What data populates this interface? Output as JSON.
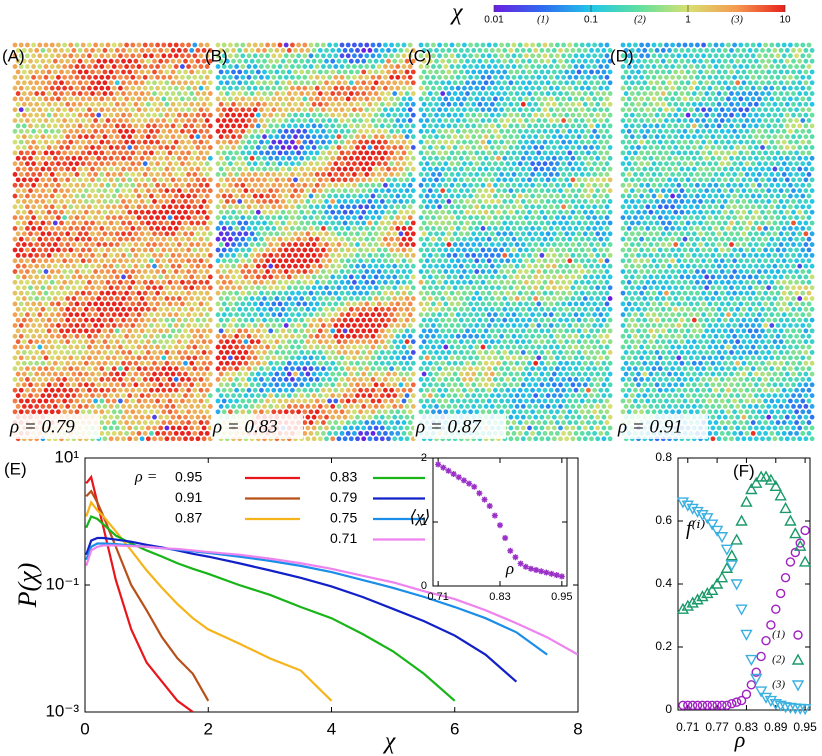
{
  "colorbar": {
    "symbol": "χ",
    "lim": [
      0.01,
      10
    ],
    "ticks": [
      0.01,
      0.1,
      1,
      10
    ],
    "regions": [
      {
        "value": 0.032,
        "label": "(1)"
      },
      {
        "value": 0.32,
        "label": "(2)"
      },
      {
        "value": 3.2,
        "label": "(3)"
      }
    ],
    "colormap": [
      "#6a1fe0",
      "#2f6bf0",
      "#22c6e8",
      "#5fe0a0",
      "#d8e070",
      "#f59a50",
      "#e8221c"
    ]
  },
  "snapshots": [
    {
      "panel": "(A)",
      "label": "ρ = 0.79"
    },
    {
      "panel": "(B)",
      "label": "ρ = 0.83"
    },
    {
      "panel": "(C)",
      "label": "ρ = 0.87"
    },
    {
      "panel": "(D)",
      "label": "ρ = 0.91"
    }
  ],
  "chart_data": [
    {
      "type": "line",
      "panel": "(E)",
      "xlabel": "χ",
      "ylabel": "P(χ)",
      "legend_title": "ρ =",
      "log_y": true,
      "xlim": [
        0,
        8
      ],
      "ylim": [
        0.001,
        10
      ],
      "xticks": [
        0,
        2,
        4,
        6,
        8
      ],
      "yticks": [
        {
          "value": 10,
          "label": "10¹"
        },
        {
          "value": 0.1,
          "label": "10⁻¹"
        },
        {
          "value": 0.001,
          "label": "10⁻³"
        }
      ],
      "x": [
        0.02,
        0.1,
        0.2,
        0.3,
        0.5,
        0.75,
        1,
        1.25,
        1.5,
        1.75,
        2,
        2.5,
        3,
        3.5,
        4,
        4.5,
        5,
        5.5,
        6,
        6.5,
        7,
        7.5,
        8
      ],
      "series": [
        {
          "name": "0.95",
          "color": "#e8161b",
          "values": [
            4,
            5,
            2,
            0.8,
            0.12,
            0.02,
            0.006,
            0.003,
            0.0015,
            0.001,
            null,
            null,
            null,
            null,
            null,
            null,
            null,
            null,
            null,
            null,
            null,
            null,
            null
          ]
        },
        {
          "name": "0.91",
          "color": "#b8501a",
          "values": [
            2.5,
            3,
            2,
            1.2,
            0.4,
            0.1,
            0.04,
            0.015,
            0.007,
            0.004,
            0.0015,
            null,
            null,
            null,
            null,
            null,
            null,
            null,
            null,
            null,
            null,
            null,
            null
          ]
        },
        {
          "name": "0.87",
          "color": "#f4b41a",
          "values": [
            1.2,
            2,
            1.5,
            1.2,
            0.7,
            0.35,
            0.17,
            0.09,
            0.05,
            0.03,
            0.02,
            0.012,
            0.007,
            0.0045,
            0.0015,
            null,
            null,
            null,
            null,
            null,
            null,
            null,
            null
          ]
        },
        {
          "name": "0.83",
          "color": "#18b418",
          "values": [
            0.8,
            1.2,
            1.1,
            0.9,
            0.6,
            0.45,
            0.35,
            0.28,
            0.22,
            0.18,
            0.15,
            0.1,
            0.07,
            0.045,
            0.03,
            0.017,
            0.009,
            0.004,
            0.0015,
            null,
            null,
            null,
            null
          ]
        },
        {
          "name": "0.79",
          "color": "#1220c8",
          "values": [
            0.3,
            0.5,
            0.55,
            0.55,
            0.52,
            0.48,
            0.43,
            0.39,
            0.35,
            0.31,
            0.28,
            0.22,
            0.17,
            0.13,
            0.095,
            0.065,
            0.042,
            0.027,
            0.016,
            0.008,
            0.003,
            null,
            null
          ]
        },
        {
          "name": "0.75",
          "color": "#1a8ee8",
          "values": [
            0.25,
            0.4,
            0.45,
            0.45,
            0.44,
            0.42,
            0.4,
            0.38,
            0.36,
            0.34,
            0.32,
            0.28,
            0.24,
            0.2,
            0.16,
            0.12,
            0.09,
            0.065,
            0.045,
            0.03,
            0.018,
            0.008,
            null
          ]
        },
        {
          "name": "0.71",
          "color": "#ee82ee",
          "values": [
            0.2,
            0.35,
            0.4,
            0.42,
            0.42,
            0.41,
            0.4,
            0.38,
            0.37,
            0.35,
            0.33,
            0.3,
            0.26,
            0.22,
            0.18,
            0.14,
            0.11,
            0.08,
            0.06,
            0.04,
            0.025,
            0.015,
            0.008
          ]
        }
      ]
    },
    {
      "type": "scatter",
      "marker": "star",
      "xlabel": "ρ",
      "ylabel": "⟨χ⟩",
      "xlim": [
        0.7,
        0.96
      ],
      "ylim": [
        0,
        2
      ],
      "xticks": [
        0.71,
        0.83,
        0.95
      ],
      "yticks": [
        0,
        1,
        2
      ],
      "x": [
        0.71,
        0.72,
        0.73,
        0.74,
        0.75,
        0.76,
        0.77,
        0.78,
        0.79,
        0.8,
        0.81,
        0.82,
        0.83,
        0.84,
        0.85,
        0.86,
        0.87,
        0.88,
        0.89,
        0.9,
        0.91,
        0.92,
        0.93,
        0.94,
        0.95
      ],
      "series": [
        {
          "color": "#9b30c8",
          "values": [
            1.9,
            1.85,
            1.8,
            1.75,
            1.7,
            1.65,
            1.6,
            1.55,
            1.45,
            1.35,
            1.25,
            1.1,
            0.95,
            0.75,
            0.55,
            0.45,
            0.35,
            0.3,
            0.27,
            0.25,
            0.23,
            0.21,
            0.19,
            0.17,
            0.15
          ]
        }
      ]
    },
    {
      "type": "scatter",
      "panel": "(F)",
      "xlabel": "ρ",
      "ylabel": "f⁽ⁱ⁾",
      "xlim": [
        0.69,
        0.96
      ],
      "ylim": [
        0,
        0.8
      ],
      "xticks": [
        0.71,
        0.77,
        0.83,
        0.89,
        0.95
      ],
      "yticks": [
        0,
        0.2,
        0.4,
        0.6,
        0.8
      ],
      "x": [
        0.7,
        0.71,
        0.72,
        0.73,
        0.74,
        0.75,
        0.76,
        0.77,
        0.78,
        0.79,
        0.8,
        0.81,
        0.82,
        0.83,
        0.84,
        0.85,
        0.86,
        0.87,
        0.88,
        0.89,
        0.9,
        0.91,
        0.92,
        0.93,
        0.94,
        0.95
      ],
      "series": [
        {
          "name": "(1)",
          "marker": "circle",
          "color": "#a020c0",
          "values": [
            0.015,
            0.015,
            0.015,
            0.015,
            0.015,
            0.015,
            0.015,
            0.015,
            0.015,
            0.015,
            0.02,
            0.025,
            0.03,
            0.05,
            0.08,
            0.12,
            0.17,
            0.22,
            0.27,
            0.32,
            0.37,
            0.42,
            0.47,
            0.5,
            0.53,
            0.57
          ]
        },
        {
          "name": "(2)",
          "marker": "triangle",
          "color": "#1a9a6a",
          "values": [
            0.32,
            0.33,
            0.34,
            0.35,
            0.36,
            0.37,
            0.38,
            0.4,
            0.42,
            0.45,
            0.49,
            0.54,
            0.6,
            0.66,
            0.7,
            0.72,
            0.74,
            0.74,
            0.73,
            0.71,
            0.68,
            0.64,
            0.6,
            0.56,
            0.52,
            0.47
          ]
        },
        {
          "name": "(3)",
          "marker": "triangle-down",
          "color": "#3ab0e0",
          "values": [
            0.66,
            0.65,
            0.64,
            0.63,
            0.62,
            0.61,
            0.59,
            0.57,
            0.55,
            0.51,
            0.46,
            0.4,
            0.32,
            0.24,
            0.16,
            0.1,
            0.06,
            0.04,
            0.03,
            0.02,
            0.015,
            0.01,
            0.008,
            0.006,
            0.005,
            0.004
          ]
        }
      ]
    }
  ]
}
